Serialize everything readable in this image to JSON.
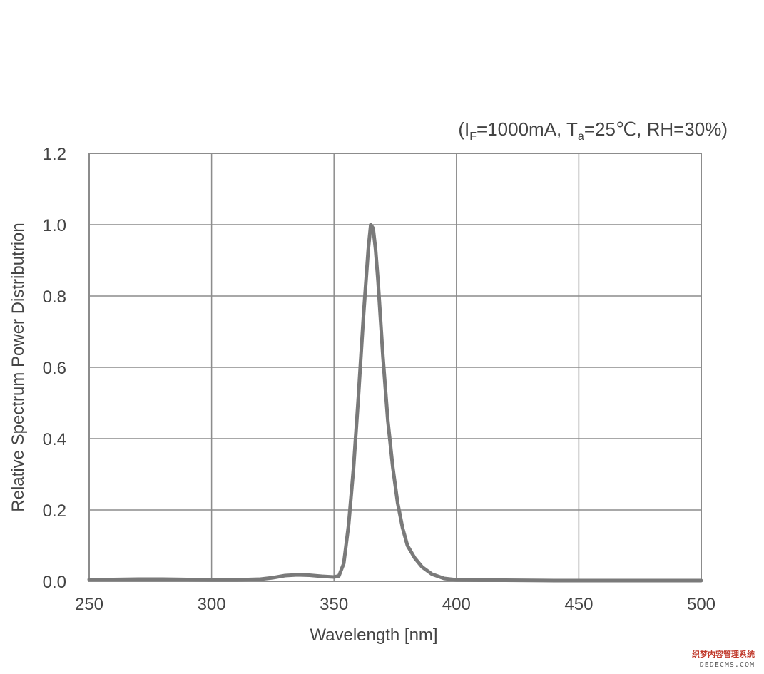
{
  "chart_data": {
    "type": "line",
    "title": "",
    "condition_parts": {
      "open": "(I",
      "if_sub": "F",
      "after_if": "=1000mA, T",
      "ta_sub": "a",
      "after_ta": "=25℃, RH=30%)"
    },
    "xlabel": "Wavelength [nm]",
    "ylabel": "Relative Spectrum Power Distributrion",
    "xlim": [
      250,
      500
    ],
    "ylim": [
      0.0,
      1.2
    ],
    "x_ticks": [
      "250",
      "300",
      "350",
      "400",
      "450",
      "500"
    ],
    "y_ticks": [
      "0.0",
      "0.2",
      "0.4",
      "0.6",
      "0.8",
      "1.0",
      "1.2"
    ],
    "grid": true,
    "line_color": "#7a7a7a",
    "grid_color": "#8c8c8c",
    "series": [
      {
        "x": [
          250,
          260,
          270,
          280,
          290,
          300,
          310,
          320,
          325,
          330,
          335,
          340,
          345,
          350,
          352,
          354,
          356,
          358,
          360,
          362,
          364,
          365,
          366,
          367,
          368,
          370,
          372,
          374,
          376,
          378,
          380,
          383,
          386,
          390,
          395,
          400,
          410,
          420,
          440,
          460,
          480,
          500
        ],
        "y": [
          0.005,
          0.005,
          0.006,
          0.006,
          0.005,
          0.004,
          0.004,
          0.006,
          0.01,
          0.016,
          0.018,
          0.017,
          0.014,
          0.012,
          0.015,
          0.05,
          0.16,
          0.32,
          0.52,
          0.74,
          0.93,
          1.0,
          0.99,
          0.93,
          0.84,
          0.63,
          0.45,
          0.32,
          0.22,
          0.15,
          0.1,
          0.065,
          0.04,
          0.02,
          0.008,
          0.004,
          0.003,
          0.003,
          0.002,
          0.002,
          0.002,
          0.002
        ]
      }
    ]
  },
  "watermark": {
    "cn": "织梦内容管理系统",
    "en": "DEDECMS.COM"
  }
}
